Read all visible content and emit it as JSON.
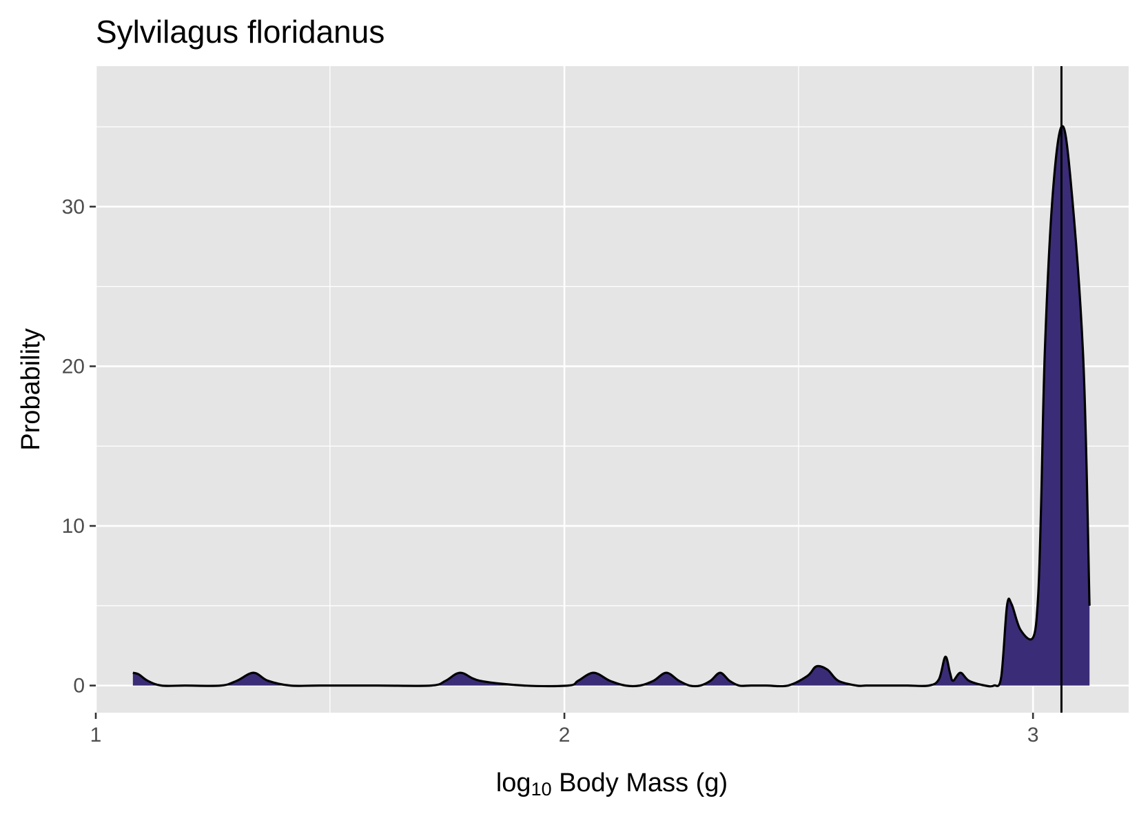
{
  "chart_data": {
    "type": "area",
    "title": "Sylvilagus floridanus",
    "xlabel": {
      "prefix": "log",
      "subscript": "10",
      "suffix": " Body Mass (g)"
    },
    "ylabel": "Probability",
    "xscale": "log",
    "xlim": [
      10,
      1600
    ],
    "ylim": [
      -1.7,
      38.8
    ],
    "x_ticks": [
      {
        "value": 10,
        "label": "1"
      },
      {
        "value": 100,
        "label": "2"
      },
      {
        "value": 1000,
        "label": "3"
      }
    ],
    "x_minor_ticks": [
      31.6,
      316,
      1780
    ],
    "y_ticks": [
      {
        "value": 0,
        "label": "0"
      },
      {
        "value": 10,
        "label": "10"
      },
      {
        "value": 20,
        "label": "20"
      },
      {
        "value": 30,
        "label": "30"
      }
    ],
    "y_minor_ticks": [
      5,
      15,
      25,
      35
    ],
    "grid": true,
    "fill_color": "#3b2c77",
    "line_color": "#000000",
    "panel_color": "#e5e5e5",
    "vline": {
      "x": 1150
    },
    "series": [
      {
        "x": [
          12.0,
          12.35,
          12.9,
          13.8,
          15.5,
          18.5,
          20.0,
          21.7,
          23.3,
          26.0,
          30.0,
          40.0,
          52.0,
          55.8,
          60.0,
          66.0,
          82.0,
          102.0,
          107.0,
          115.4,
          125.0,
          135.0,
          145.0,
          155.0,
          165.0,
          175.5,
          185.0,
          195.0,
          205.0,
          215.0,
          225.0,
          236.0,
          250.0,
          270.0,
          300.0,
          330.0,
          345.0,
          364.0,
          384.0,
          420.0,
          440.0,
          470.0,
          500.0,
          540.0,
          600.0,
          630.0,
          650.0,
          665.0,
          675.0,
          700.0,
          730.0,
          790.0,
          825.0,
          855.0,
          880.0,
          900.0,
          940.0,
          1000.0,
          1025.0,
          1040.0,
          1060.0,
          1100.0,
          1150.0,
          1200.0,
          1280.0,
          1320.0
        ],
        "y": [
          0.8,
          0.7,
          0.3,
          0.0,
          0.0,
          0.0,
          0.3,
          0.8,
          0.3,
          0.0,
          0.0,
          0.0,
          0.0,
          0.3,
          0.8,
          0.3,
          0.0,
          0.0,
          0.3,
          0.8,
          0.3,
          0.0,
          0.0,
          0.3,
          0.8,
          0.3,
          0.0,
          0.0,
          0.3,
          0.8,
          0.3,
          0.0,
          0.0,
          0.0,
          0.0,
          0.6,
          1.2,
          1.0,
          0.3,
          0.0,
          0.0,
          0.0,
          0.0,
          0.0,
          0.0,
          0.4,
          1.8,
          0.8,
          0.3,
          0.8,
          0.3,
          0.0,
          0.0,
          0.5,
          5.0,
          5.1,
          3.5,
          3.0,
          5.5,
          11.0,
          21.0,
          30.5,
          35.0,
          32.0,
          20.5,
          5.0
        ]
      }
    ]
  }
}
